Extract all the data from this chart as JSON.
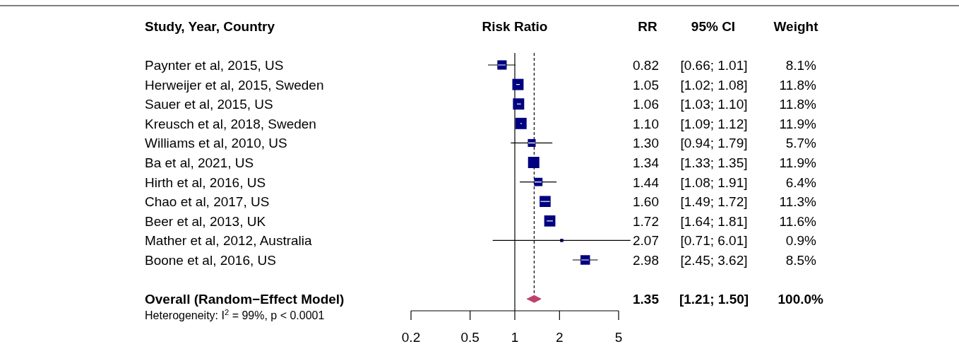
{
  "chart_data": [
    {
      "type": "scatter",
      "orientation": "horizontal",
      "xlabel": "Risk Ratio",
      "ylabel": "Study, Year, Country",
      "categories": [
        "Paynter et al, 2015, US",
        "Herweijer et al, 2015, Sweden",
        "Sauer et al, 2015, US",
        "Kreusch et al, 2018, Sweden",
        "Williams et al, 2010, US",
        "Ba et al, 2021, US",
        "Hirth et al, 2016, US",
        "Chao et al, 2017, US",
        "Beer et al, 2013, UK",
        "Mather et al, 2012, Australia",
        "Boone et al, 2016, US",
        "Overall (Random−Effect Model)"
      ],
      "series": [
        {
          "type": "scatter",
          "marker": "square",
          "color": "#000080",
          "values": [
            0.82,
            1.05,
            1.06,
            1.1,
            1.3,
            1.34,
            1.44,
            1.6,
            1.72,
            2.07,
            2.98,
            null
          ],
          "errors": [
            [
              0.66,
              1.01
            ],
            [
              1.02,
              1.08
            ],
            [
              1.03,
              1.1
            ],
            [
              1.09,
              1.12
            ],
            [
              0.94,
              1.79
            ],
            null,
            [
              1.08,
              1.91
            ],
            [
              1.49,
              1.72
            ],
            [
              1.64,
              1.81
            ],
            [
              0.71,
              6.01
            ],
            [
              2.45,
              3.62
            ],
            null
          ],
          "sizes": [
            0.68,
            0.99,
            0.99,
            1,
            0.48,
            1,
            0.54,
            0.95,
            0.97,
            0.08,
            0.71,
            null
          ]
        },
        {
          "type": "scatter",
          "marker": "diamond",
          "color": "#c0406e",
          "values": [
            null,
            null,
            null,
            null,
            null,
            null,
            null,
            null,
            null,
            null,
            null,
            1.35
          ],
          "errors": [
            null,
            null,
            null,
            null,
            null,
            null,
            null,
            null,
            null,
            null,
            null,
            [
              1.21,
              1.5
            ]
          ]
        }
      ],
      "log": "x",
      "xlim": [
        0.2,
        5
      ],
      "xticks": [
        0.2,
        0.5,
        1,
        2,
        5
      ],
      "ref_lines": [
        {
          "axis": "x",
          "value": 1,
          "line_style": "solid",
          "color": "#000000"
        },
        {
          "axis": "x",
          "value": 1.35,
          "line_style": "dashed",
          "color": "#000000"
        }
      ],
      "annotations": [
        "Heterogeneity: I$^{2}$ = 99%, p < 0.0001"
      ]
    },
    {
      "type": "other",
      "annotations": [
        "RR",
        "95% CI",
        "Weight",
        "0.82",
        "[0.66; 1.01]",
        "8.1%",
        "1.05",
        "[1.02; 1.08]",
        "11.8%",
        "1.06",
        "[1.03; 1.10]",
        "11.8%",
        "1.10",
        "[1.09; 1.12]",
        "11.9%",
        "1.30",
        "[0.94; 1.79]",
        "5.7%",
        "1.34",
        "[1.33; 1.35]",
        "11.9%",
        "1.44",
        "[1.08; 1.91]",
        "6.4%",
        "1.60",
        "[1.49; 1.72]",
        "11.3%",
        "1.72",
        "[1.64; 1.81]",
        "11.6%",
        "2.07",
        "[0.71; 6.01]",
        "0.9%",
        "2.98",
        "[2.45; 3.62]",
        "8.5%",
        "1.35",
        "[1.21; 1.50]",
        "100.0%"
      ]
    }
  ]
}
